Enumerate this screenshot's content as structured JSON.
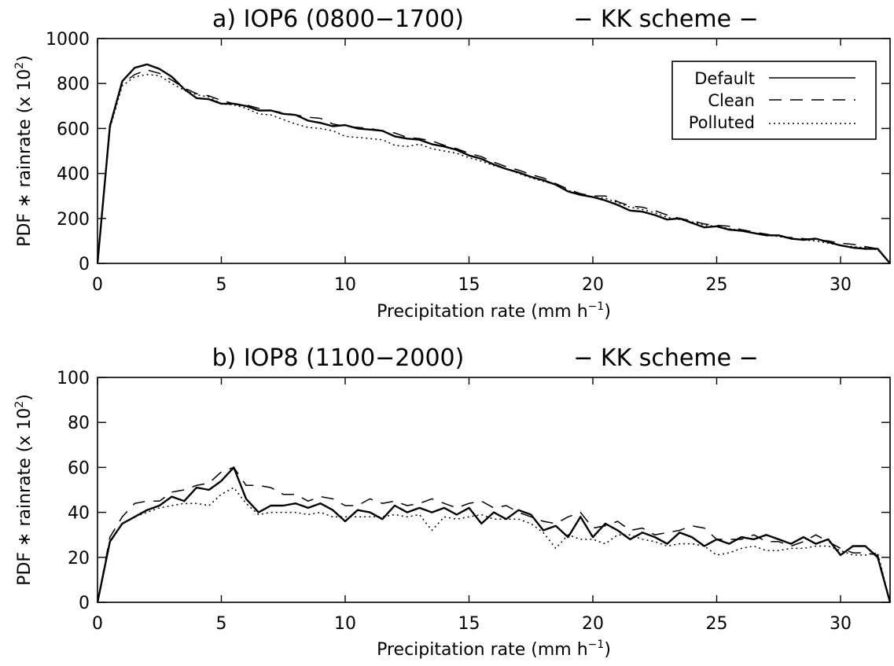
{
  "chart_data": [
    {
      "type": "line",
      "title": "a) IOP6 (0800−1700)",
      "subtitle": "− KK scheme −",
      "xlabel": "Precipitation rate (mm h",
      "xlabel_sup": "−1",
      "xlabel_end": ")",
      "ylabel": "PDF ∗ rainrate (x 10",
      "ylabel_sup": "2",
      "ylabel_end": ")",
      "xlim": [
        0,
        32
      ],
      "ylim": [
        0,
        1000
      ],
      "xticks": [
        0,
        5,
        10,
        15,
        20,
        25,
        30
      ],
      "yticks": [
        0,
        200,
        400,
        600,
        800,
        1000
      ],
      "legend_position": "top-right",
      "x": [
        0,
        0.5,
        1,
        1.5,
        2,
        2.5,
        3,
        3.5,
        4,
        4.5,
        5,
        5.5,
        6,
        6.5,
        7,
        7.5,
        8,
        8.5,
        9,
        9.5,
        10,
        10.5,
        11,
        11.5,
        12,
        12.5,
        13,
        13.5,
        14,
        14.5,
        15,
        15.5,
        16,
        16.5,
        17,
        17.5,
        18,
        18.5,
        19,
        19.5,
        20,
        20.5,
        21,
        21.5,
        22,
        22.5,
        23,
        23.5,
        24,
        24.5,
        25,
        25.5,
        26,
        26.5,
        27,
        27.5,
        28,
        28.5,
        29,
        29.5,
        30,
        30.5,
        31,
        31.5,
        32
      ],
      "series": [
        {
          "name": "Default",
          "style": "solid",
          "values": [
            0,
            610,
            810,
            870,
            885,
            865,
            830,
            775,
            735,
            730,
            710,
            710,
            700,
            680,
            680,
            665,
            660,
            635,
            625,
            610,
            615,
            600,
            595,
            590,
            565,
            555,
            550,
            530,
            520,
            505,
            480,
            465,
            440,
            420,
            405,
            385,
            370,
            350,
            320,
            305,
            295,
            280,
            260,
            235,
            230,
            215,
            195,
            200,
            180,
            160,
            165,
            150,
            145,
            135,
            125,
            125,
            110,
            105,
            110,
            95,
            80,
            70,
            65,
            65,
            0
          ]
        },
        {
          "name": "Clean",
          "style": "dashed",
          "values": [
            0,
            620,
            800,
            840,
            860,
            845,
            815,
            780,
            755,
            745,
            725,
            710,
            705,
            690,
            680,
            670,
            660,
            650,
            645,
            620,
            610,
            605,
            600,
            590,
            580,
            560,
            555,
            545,
            525,
            510,
            490,
            475,
            450,
            430,
            415,
            395,
            380,
            355,
            330,
            310,
            300,
            300,
            275,
            255,
            250,
            235,
            215,
            200,
            190,
            175,
            170,
            165,
            150,
            140,
            130,
            120,
            115,
            110,
            105,
            100,
            90,
            85,
            75,
            65,
            0
          ]
        },
        {
          "name": "Polluted",
          "style": "dotted",
          "values": [
            0,
            600,
            790,
            830,
            840,
            835,
            800,
            770,
            750,
            740,
            710,
            705,
            690,
            665,
            660,
            640,
            620,
            605,
            600,
            590,
            565,
            560,
            555,
            550,
            525,
            520,
            530,
            510,
            500,
            490,
            470,
            455,
            435,
            420,
            400,
            380,
            365,
            350,
            325,
            305,
            295,
            290,
            270,
            250,
            240,
            225,
            205,
            195,
            185,
            170,
            165,
            155,
            145,
            135,
            125,
            120,
            110,
            105,
            100,
            90,
            80,
            75,
            70,
            60,
            0
          ]
        }
      ]
    },
    {
      "type": "line",
      "title": "b) IOP8 (1100−2000)",
      "subtitle": "− KK scheme −",
      "xlabel": "Precipitation rate (mm h",
      "xlabel_sup": "−1",
      "xlabel_end": ")",
      "ylabel": "PDF ∗ rainrate (x 10",
      "ylabel_sup": "2",
      "ylabel_end": ")",
      "xlim": [
        0,
        32
      ],
      "ylim": [
        0,
        100
      ],
      "xticks": [
        0,
        5,
        10,
        15,
        20,
        25,
        30
      ],
      "yticks": [
        0,
        20,
        40,
        60,
        80,
        100
      ],
      "x": [
        0,
        0.5,
        1,
        1.5,
        2,
        2.5,
        3,
        3.5,
        4,
        4.5,
        5,
        5.5,
        6,
        6.5,
        7,
        7.5,
        8,
        8.5,
        9,
        9.5,
        10,
        10.5,
        11,
        11.5,
        12,
        12.5,
        13,
        13.5,
        14,
        14.5,
        15,
        15.5,
        16,
        16.5,
        17,
        17.5,
        18,
        18.5,
        19,
        19.5,
        20,
        20.5,
        21,
        21.5,
        22,
        22.5,
        23,
        23.5,
        24,
        24.5,
        25,
        25.5,
        26,
        26.5,
        27,
        27.5,
        28,
        28.5,
        29,
        29.5,
        30,
        30.5,
        31,
        31.5,
        32
      ],
      "series": [
        {
          "name": "Default",
          "style": "solid",
          "values": [
            0,
            27,
            35,
            38,
            41,
            43,
            47,
            45,
            51,
            50,
            54,
            60,
            46,
            40,
            43,
            43,
            44,
            42,
            44,
            41,
            36,
            41,
            40,
            37,
            43,
            40,
            42,
            40,
            42,
            39,
            42,
            35,
            40,
            37,
            41,
            39,
            32,
            34,
            29,
            38,
            29,
            35,
            32,
            28,
            31,
            29,
            26,
            31,
            29,
            25,
            28,
            26,
            29,
            28,
            30,
            28,
            26,
            29,
            26,
            28,
            21,
            25,
            25,
            20,
            0
          ]
        },
        {
          "name": "Clean",
          "style": "dashed",
          "values": [
            0,
            29,
            38,
            44,
            45,
            45,
            49,
            50,
            52,
            53,
            58,
            60,
            52,
            52,
            51,
            48,
            48,
            45,
            47,
            46,
            43,
            43,
            46,
            44,
            45,
            43,
            44,
            46,
            44,
            42,
            44,
            45,
            42,
            43,
            40,
            38,
            36,
            35,
            38,
            40,
            33,
            34,
            36,
            32,
            33,
            30,
            31,
            32,
            34,
            33,
            28,
            28,
            28,
            30,
            27,
            27,
            25,
            27,
            30,
            27,
            24,
            22,
            22,
            21,
            0
          ]
        },
        {
          "name": "Polluted",
          "style": "dotted",
          "values": [
            0,
            27,
            35,
            38,
            40,
            42,
            43,
            44,
            44,
            43,
            48,
            51,
            44,
            39,
            40,
            40,
            40,
            39,
            40,
            38,
            38,
            38,
            38,
            38,
            39,
            38,
            39,
            32,
            38,
            37,
            38,
            39,
            37,
            37,
            37,
            35,
            31,
            24,
            30,
            28,
            28,
            26,
            30,
            30,
            28,
            27,
            25,
            26,
            26,
            25,
            21,
            22,
            24,
            25,
            23,
            23,
            24,
            24,
            25,
            25,
            23,
            21,
            21,
            22,
            0
          ]
        }
      ]
    }
  ]
}
